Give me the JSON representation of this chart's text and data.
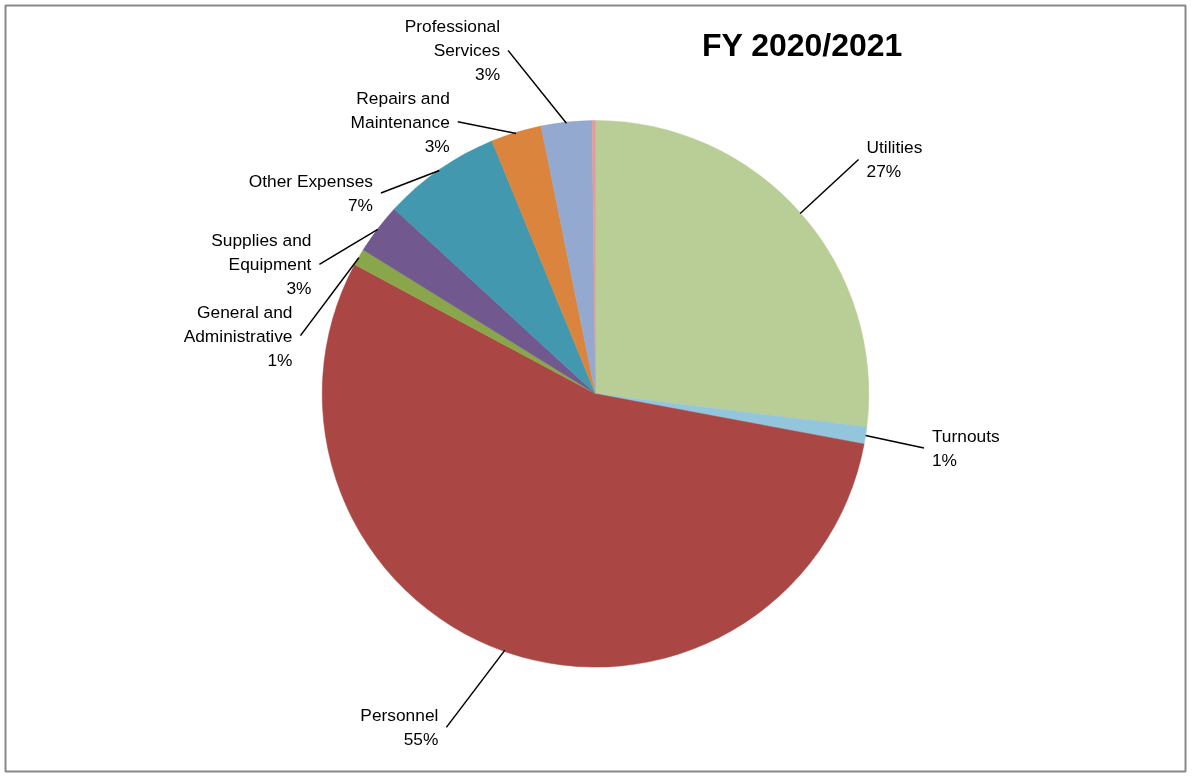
{
  "chart_data": {
    "type": "pie",
    "title": "FY 2020/2021",
    "categories": [
      "Utilities",
      "Turnouts",
      "Personnel",
      "General and Administrative",
      "Supplies and Equipment",
      "Other Expenses",
      "Repairs and Maintenance",
      "Professional Services",
      null
    ],
    "values": [
      27,
      1,
      55,
      1,
      3,
      7,
      3,
      3,
      0.2
    ],
    "value_labels": [
      "27%",
      "1%",
      "55%",
      "1%",
      "3%",
      "7%",
      "3%",
      "3%",
      null
    ],
    "colors": [
      "#b9cd96",
      "#93c6dc",
      "#aa4644",
      "#8aa64a",
      "#71588f",
      "#4198af",
      "#db843d",
      "#93a9cf",
      "#e39c9a"
    ]
  }
}
